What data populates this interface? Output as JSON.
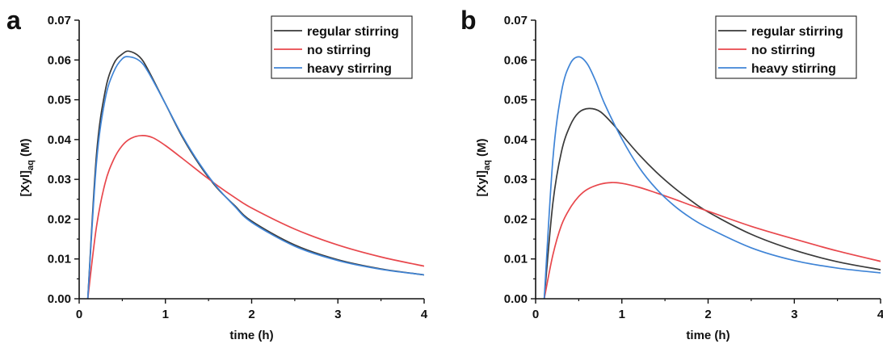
{
  "chart_data": [
    {
      "panel": "a",
      "type": "line",
      "xlabel": "time (h)",
      "ylabel": "[Xyl]aq (M)",
      "ylabel_main": "[Xyl]",
      "ylabel_sub": "aq",
      "ylabel_unit": " (M)",
      "xlim": [
        0,
        4
      ],
      "ylim": [
        0,
        0.07
      ],
      "xticks": [
        0,
        1,
        2,
        3,
        4
      ],
      "yticks": [
        0.0,
        0.01,
        0.02,
        0.03,
        0.04,
        0.05,
        0.06,
        0.07
      ],
      "xtick_labels": [
        "0",
        "1",
        "2",
        "3",
        "4"
      ],
      "ytick_labels": [
        "0.00",
        "0.01",
        "0.02",
        "0.03",
        "0.04",
        "0.05",
        "0.06",
        "0.07"
      ],
      "legend_position": "top-right",
      "grid": false,
      "series": [
        {
          "name": "regular stirring",
          "color": "#3a3a3a",
          "x": [
            0.1,
            0.2,
            0.3,
            0.4,
            0.5,
            0.58,
            0.7,
            0.8,
            1.0,
            1.2,
            1.4,
            1.6,
            1.8,
            2.0,
            2.5,
            3.0,
            3.5,
            4.0
          ],
          "y": [
            0.0,
            0.036,
            0.052,
            0.059,
            0.0615,
            0.0622,
            0.0608,
            0.0575,
            0.049,
            0.0405,
            0.0335,
            0.0278,
            0.0235,
            0.0195,
            0.0135,
            0.0098,
            0.0075,
            0.006
          ]
        },
        {
          "name": "no stirring",
          "color": "#e8474c",
          "x": [
            0.1,
            0.2,
            0.3,
            0.4,
            0.5,
            0.6,
            0.72,
            0.85,
            1.0,
            1.2,
            1.4,
            1.6,
            1.8,
            2.0,
            2.5,
            3.0,
            3.5,
            4.0
          ],
          "y": [
            0.0,
            0.018,
            0.029,
            0.035,
            0.0385,
            0.0403,
            0.041,
            0.0405,
            0.0385,
            0.0352,
            0.0318,
            0.0285,
            0.0255,
            0.0228,
            0.0175,
            0.0135,
            0.0105,
            0.0082
          ]
        },
        {
          "name": "heavy stirring",
          "color": "#3f84d6",
          "x": [
            0.1,
            0.2,
            0.3,
            0.4,
            0.5,
            0.58,
            0.7,
            0.8,
            1.0,
            1.2,
            1.4,
            1.6,
            1.8,
            2.0,
            2.5,
            3.0,
            3.5,
            4.0
          ],
          "y": [
            0.0,
            0.034,
            0.05,
            0.057,
            0.0603,
            0.0608,
            0.0598,
            0.057,
            0.049,
            0.0408,
            0.0338,
            0.028,
            0.0233,
            0.0192,
            0.0132,
            0.0096,
            0.0074,
            0.006
          ]
        }
      ]
    },
    {
      "panel": "b",
      "type": "line",
      "xlabel": "time (h)",
      "ylabel": "[Xyl]aq (M)",
      "ylabel_main": "[Xyl]",
      "ylabel_sub": "aq",
      "ylabel_unit": " (M)",
      "xlim": [
        0,
        4
      ],
      "ylim": [
        0,
        0.07
      ],
      "xticks": [
        0,
        1,
        2,
        3,
        4
      ],
      "yticks": [
        0.0,
        0.01,
        0.02,
        0.03,
        0.04,
        0.05,
        0.06,
        0.07
      ],
      "xtick_labels": [
        "0",
        "1",
        "2",
        "3",
        "4"
      ],
      "ytick_labels": [
        "0.00",
        "0.01",
        "0.02",
        "0.03",
        "0.04",
        "0.05",
        "0.06",
        "0.07"
      ],
      "legend_position": "top-right",
      "grid": false,
      "series": [
        {
          "name": "regular stirring",
          "color": "#3a3a3a",
          "x": [
            0.1,
            0.2,
            0.3,
            0.4,
            0.5,
            0.62,
            0.75,
            0.9,
            1.0,
            1.2,
            1.4,
            1.6,
            1.8,
            2.0,
            2.5,
            3.0,
            3.5,
            4.0
          ],
          "y": [
            0.0,
            0.024,
            0.037,
            0.0435,
            0.0468,
            0.0478,
            0.047,
            0.0438,
            0.0412,
            0.0362,
            0.0318,
            0.028,
            0.0247,
            0.0218,
            0.0162,
            0.0122,
            0.0093,
            0.0073
          ]
        },
        {
          "name": "no stirring",
          "color": "#e8474c",
          "x": [
            0.1,
            0.2,
            0.3,
            0.4,
            0.5,
            0.6,
            0.75,
            0.88,
            1.0,
            1.2,
            1.4,
            1.6,
            1.8,
            2.0,
            2.5,
            3.0,
            3.5,
            4.0
          ],
          "y": [
            0.0,
            0.011,
            0.0185,
            0.0228,
            0.0257,
            0.0275,
            0.0288,
            0.0292,
            0.029,
            0.028,
            0.0266,
            0.0251,
            0.0235,
            0.022,
            0.0182,
            0.015,
            0.012,
            0.0094
          ]
        },
        {
          "name": "heavy stirring",
          "color": "#3f84d6",
          "x": [
            0.1,
            0.2,
            0.3,
            0.4,
            0.5,
            0.6,
            0.7,
            0.8,
            1.0,
            1.2,
            1.4,
            1.6,
            1.8,
            2.0,
            2.5,
            3.0,
            3.5,
            4.0
          ],
          "y": [
            0.0,
            0.035,
            0.052,
            0.059,
            0.0608,
            0.059,
            0.0545,
            0.049,
            0.0402,
            0.033,
            0.0276,
            0.0235,
            0.0203,
            0.0178,
            0.0128,
            0.0096,
            0.0077,
            0.0065
          ]
        }
      ]
    }
  ]
}
